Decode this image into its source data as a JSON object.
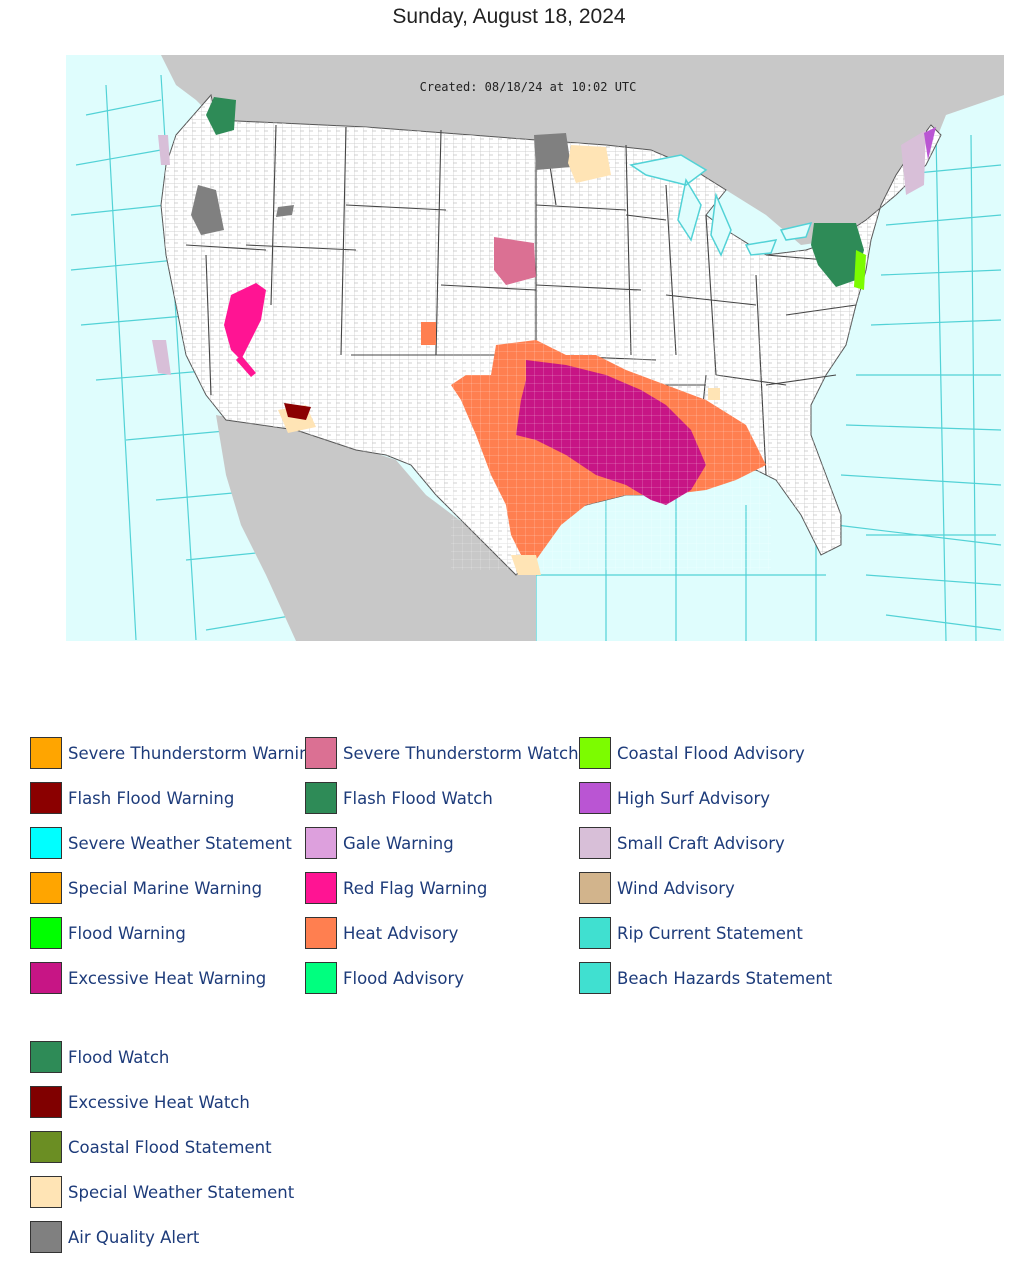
{
  "page": {
    "title": "Sunday, August 18, 2024"
  },
  "map": {
    "created_text": "Created: 08/18/24 at 10:02 UTC",
    "colors": {
      "ocean": "#dffdfd",
      "land_outside": "#c8c8c8",
      "us_land": "#ffffff",
      "county_lines": "#bfbfbf",
      "zone_lines": "#52d2d6"
    }
  },
  "legend": {
    "columns": [
      [
        {
          "label": "Severe Thunderstorm Warning",
          "color": "#ffa500"
        },
        {
          "label": "Flash Flood Warning",
          "color": "#8b0000"
        },
        {
          "label": "Severe Weather Statement",
          "color": "#00ffff"
        },
        {
          "label": "Special Marine Warning",
          "color": "#ffa500"
        },
        {
          "label": "Flood Warning",
          "color": "#00ff00"
        },
        {
          "label": "Excessive Heat Warning",
          "color": "#c71585"
        }
      ],
      [
        {
          "label": "Severe Thunderstorm Watch",
          "color": "#db7093"
        },
        {
          "label": "Flash Flood Watch",
          "color": "#2e8b57"
        },
        {
          "label": "Gale Warning",
          "color": "#dda0dd"
        },
        {
          "label": "Red Flag Warning",
          "color": "#ff1493"
        },
        {
          "label": "Heat Advisory",
          "color": "#ff7f50"
        },
        {
          "label": "Flood Advisory",
          "color": "#00ff7f"
        }
      ],
      [
        {
          "label": "Coastal Flood Advisory",
          "color": "#7cfc00"
        },
        {
          "label": "High Surf Advisory",
          "color": "#ba55d3"
        },
        {
          "label": "Small Craft Advisory",
          "color": "#d8bfd8"
        },
        {
          "label": "Wind Advisory",
          "color": "#d2b48c"
        },
        {
          "label": "Rip Current Statement",
          "color": "#40e0d0"
        },
        {
          "label": "Beach Hazards Statement",
          "color": "#40e0d0"
        }
      ],
      [
        {
          "label": "Flood Watch",
          "color": "#2e8b57"
        },
        {
          "label": "Excessive Heat Watch",
          "color": "#800000"
        },
        {
          "label": "Coastal Flood Statement",
          "color": "#6b8e23"
        },
        {
          "label": "Special Weather Statement",
          "color": "#ffe4b5"
        },
        {
          "label": "Air Quality Alert",
          "color": "#808080"
        }
      ]
    ]
  }
}
